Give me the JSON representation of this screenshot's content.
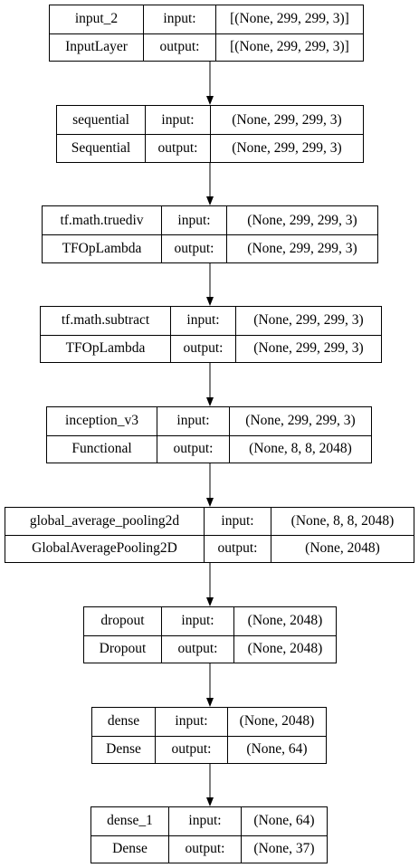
{
  "title": "Keras model plot",
  "labels": {
    "input": "input:",
    "output": "output:"
  },
  "layers": [
    {
      "name": "input_2",
      "type": "InputLayer",
      "input_shape": "[(None, 299, 299, 3)]",
      "output_shape": "[(None, 299, 299, 3)]"
    },
    {
      "name": "sequential",
      "type": "Sequential",
      "input_shape": "(None, 299, 299, 3)",
      "output_shape": "(None, 299, 299, 3)"
    },
    {
      "name": "tf.math.truediv",
      "type": "TFOpLambda",
      "input_shape": "(None, 299, 299, 3)",
      "output_shape": "(None, 299, 299, 3)"
    },
    {
      "name": "tf.math.subtract",
      "type": "TFOpLambda",
      "input_shape": "(None, 299, 299, 3)",
      "output_shape": "(None, 299, 299, 3)"
    },
    {
      "name": "inception_v3",
      "type": "Functional",
      "input_shape": "(None, 299, 299, 3)",
      "output_shape": "(None, 8, 8, 2048)"
    },
    {
      "name": "global_average_pooling2d",
      "type": "GlobalAveragePooling2D",
      "input_shape": "(None, 8, 8, 2048)",
      "output_shape": "(None, 2048)"
    },
    {
      "name": "dropout",
      "type": "Dropout",
      "input_shape": "(None, 2048)",
      "output_shape": "(None, 2048)"
    },
    {
      "name": "dense",
      "type": "Dense",
      "input_shape": "(None, 2048)",
      "output_shape": "(None, 64)"
    },
    {
      "name": "dense_1",
      "type": "Dense",
      "input_shape": "(None, 64)",
      "output_shape": "(None, 37)"
    }
  ]
}
